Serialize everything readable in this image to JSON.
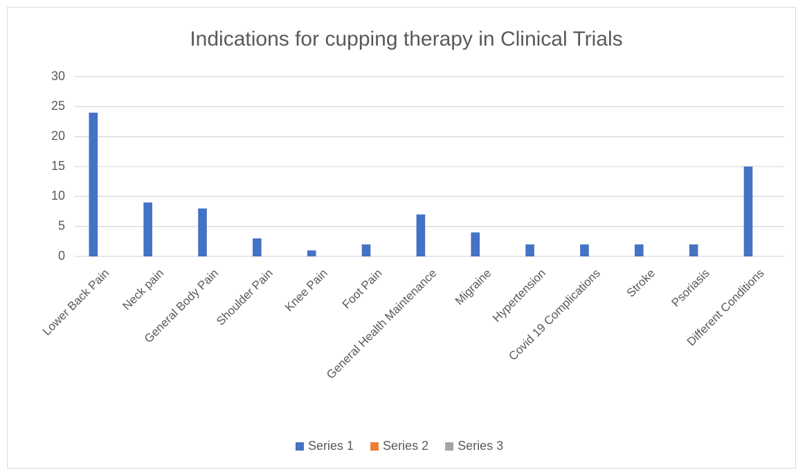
{
  "chart_data": {
    "type": "bar",
    "title": "Indications for cupping therapy in Clinical Trials",
    "categories": [
      "Lower Back Pain",
      "Neck pain",
      "General Body Pain",
      "Shoulder Pain",
      "Knee Pain",
      "Foot Pain",
      "General Health Maintenance",
      "Migraine",
      "Hypertension",
      "Covid 19 Complications",
      "Stroke",
      "Psoriasis",
      "Different Conditions"
    ],
    "series": [
      {
        "name": "Series 1",
        "color": "#4472c4",
        "values": [
          24,
          9,
          8,
          3,
          1,
          2,
          7,
          4,
          2,
          2,
          2,
          2,
          15
        ]
      },
      {
        "name": "Series 2",
        "color": "#ed7d31",
        "values": [
          null,
          null,
          null,
          null,
          null,
          null,
          null,
          null,
          null,
          null,
          null,
          null,
          null
        ]
      },
      {
        "name": "Series 3",
        "color": "#a5a5a5",
        "values": [
          null,
          null,
          null,
          null,
          null,
          null,
          null,
          null,
          null,
          null,
          null,
          null,
          null
        ]
      }
    ],
    "ylim": [
      0,
      30
    ],
    "yticks": [
      0,
      5,
      10,
      15,
      20,
      25,
      30
    ],
    "grid": true,
    "legend": "bottom"
  }
}
